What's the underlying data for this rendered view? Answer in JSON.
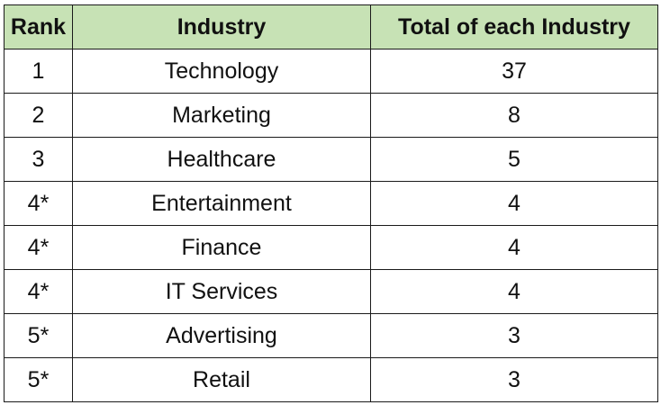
{
  "table": {
    "headers": {
      "rank": "Rank",
      "industry": "Industry",
      "total": "Total of each Industry"
    },
    "header_color": "#c7e2b5",
    "rows": [
      {
        "rank": "1",
        "industry": "Technology",
        "total": "37"
      },
      {
        "rank": "2",
        "industry": "Marketing",
        "total": "8"
      },
      {
        "rank": "3",
        "industry": "Healthcare",
        "total": "5"
      },
      {
        "rank": "4*",
        "industry": "Entertainment",
        "total": "4"
      },
      {
        "rank": "4*",
        "industry": "Finance",
        "total": "4"
      },
      {
        "rank": "4*",
        "industry": "IT Services",
        "total": "4"
      },
      {
        "rank": "5*",
        "industry": "Advertising",
        "total": "3"
      },
      {
        "rank": "5*",
        "industry": "Retail",
        "total": "3"
      }
    ]
  }
}
